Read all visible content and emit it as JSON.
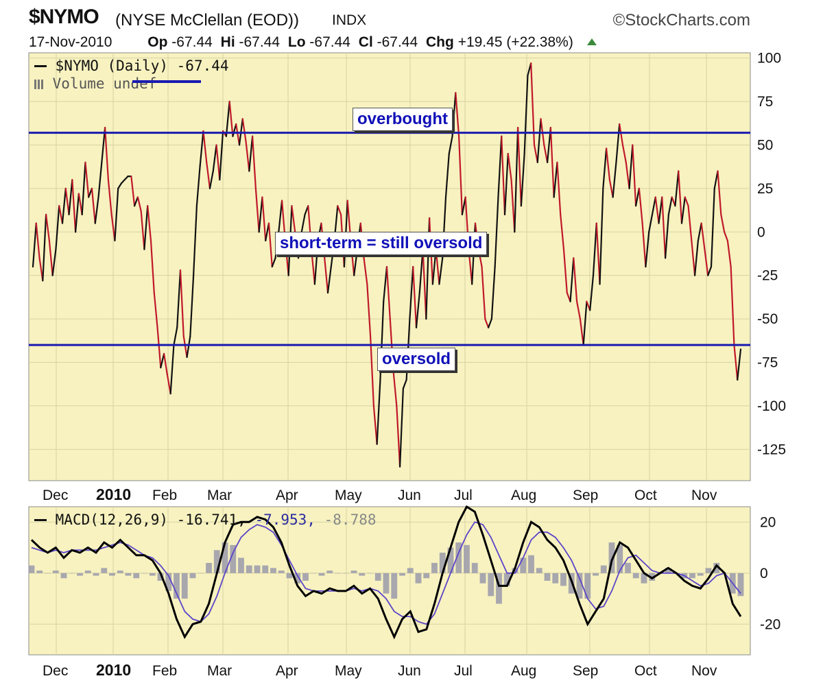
{
  "header": {
    "symbol": "$NYMO",
    "description": "(NYSE McClellan (EOD))",
    "exchange": "INDX",
    "brand": "©StockCharts.com",
    "date": "17-Nov-2010",
    "open_label": "Op",
    "open": "-67.44",
    "high_label": "Hi",
    "high": "-67.44",
    "low_label": "Lo",
    "low": "-67.44",
    "close_label": "Cl",
    "close": "-67.44",
    "change_label": "Chg",
    "change": "+19.45 (+22.38%)"
  },
  "legend": {
    "main": "$NYMO (Daily) -67.44",
    "volume": "Volume undef",
    "macd_prefix": "MACD(12,26,9) -16.741,",
    "macd_signal": "-7.953,",
    "macd_hist": "-8.788"
  },
  "annotations": {
    "overbought": "overbought",
    "middle": "short-term = still oversold",
    "oversold": "oversold"
  },
  "colors": {
    "panel_bg": "#f7f2c0",
    "grid": "#d8d3a4",
    "price_up": "#111111",
    "price_down": "#c0182a",
    "level_line": "#1a1ab0",
    "macd_line": "#000000",
    "signal_line": "#5c44c8",
    "histogram": "#9a9aaa"
  },
  "chart_data": [
    {
      "type": "line",
      "title": "$NYMO (Daily)",
      "x_axis_labels": [
        "Dec",
        "2010",
        "Feb",
        "Mar",
        "Apr",
        "May",
        "Jun",
        "Jul",
        "Aug",
        "Sep",
        "Oct",
        "Nov"
      ],
      "y_ticks": [
        100,
        75,
        50,
        25,
        0,
        -25,
        -50,
        -75,
        -100,
        -125
      ],
      "ylim": [
        -143,
        103
      ],
      "grid": true,
      "reference_lines": [
        {
          "value": 57,
          "label": "overbought"
        },
        {
          "value": -65,
          "label": "oversold"
        }
      ],
      "series": [
        {
          "name": "$NYMO",
          "values": [
            [
              -20,
              5,
              -15,
              -28,
              10,
              -5,
              -25,
              -10,
              15,
              5,
              25,
              10,
              30,
              0,
              22,
              10,
              40,
              20,
              25,
              5,
              20,
              40,
              60,
              30,
              10,
              -5,
              25,
              28,
              30,
              32,
              32,
              15,
              20,
              12,
              -10,
              15,
              -5,
              -35,
              -55,
              -78,
              -70,
              -82,
              -93,
              -65,
              -55,
              -22,
              -60,
              -72
            ],
            [
              -60,
              -25,
              15,
              38,
              58,
              40,
              25,
              35,
              50,
              30,
              58,
              55,
              75,
              55,
              62,
              50,
              65,
              52,
              35,
              55,
              25,
              0,
              20,
              -5,
              5,
              -20,
              -15,
              0,
              18,
              -5,
              -25,
              15,
              0,
              -15,
              0,
              10,
              15,
              -10,
              -30,
              -5,
              5,
              -15,
              -35,
              -20,
              -5,
              15,
              10,
              -20,
              18,
              -5,
              -25,
              -10,
              5,
              -15,
              -30
            ],
            [
              -60,
              -100,
              -122,
              -85,
              -40,
              -20,
              -50,
              -80,
              -100,
              -135,
              -90,
              -85,
              -50,
              -20,
              -55,
              -35,
              -10,
              -50,
              8,
              -30,
              -10,
              -30,
              -15,
              20,
              45,
              55,
              80,
              55,
              10,
              20,
              -10,
              -30,
              5,
              -10,
              -20,
              -50,
              -55,
              -50,
              -20,
              20,
              55,
              10,
              45,
              30,
              0,
              60,
              15,
              45,
              90,
              97,
              50,
              40,
              65,
              50,
              40,
              60,
              20,
              40,
              10
            ],
            [
              -10,
              -35,
              -40,
              -15,
              -40,
              -50,
              -65,
              -40,
              -45,
              -25,
              5,
              -30,
              25,
              48,
              30,
              20,
              40,
              62,
              50,
              40,
              25,
              50,
              15,
              25,
              5,
              -20,
              0,
              10,
              20,
              5,
              20,
              -15,
              10,
              20,
              15,
              35,
              5,
              20,
              15,
              -5,
              -25,
              -5,
              5,
              -10,
              -25,
              -20,
              25,
              35,
              10,
              0,
              -5,
              -20,
              -65,
              -85,
              -67.44
            ]
          ]
        }
      ]
    },
    {
      "type": "line",
      "title": "MACD(12,26,9)",
      "x_axis_labels": [
        "Dec",
        "2010",
        "Feb",
        "Mar",
        "Apr",
        "May",
        "Jun",
        "Jul",
        "Aug",
        "Sep",
        "Oct",
        "Nov"
      ],
      "y_ticks": [
        20,
        0,
        -20
      ],
      "ylim": [
        -32,
        26
      ],
      "grid": true,
      "last_values": {
        "macd": -16.741,
        "signal": -7.953,
        "histogram": -8.788
      },
      "series": [
        {
          "name": "MACD",
          "values": [
            13,
            10,
            8,
            10,
            6,
            9,
            8,
            10,
            8,
            12,
            10,
            13,
            10,
            7,
            7,
            5,
            0,
            -8,
            -18,
            -25,
            -20,
            -19,
            -12,
            0,
            12,
            19,
            20,
            20,
            22,
            21,
            18,
            12,
            3,
            -5,
            -9,
            -7,
            -8,
            -6,
            -7,
            -7,
            -5,
            -8,
            -6,
            -10,
            -18,
            -25,
            -18,
            -15,
            -23,
            -22,
            -12,
            0,
            10,
            20,
            26,
            24,
            15,
            5,
            -5,
            -5,
            2,
            12,
            20,
            18,
            13,
            10,
            5,
            -3,
            -12,
            -20,
            -15,
            -10,
            5,
            12,
            10,
            5,
            0,
            -2,
            0,
            2,
            0,
            -3,
            -5,
            -6,
            -2,
            3,
            0,
            -12,
            -17
          ]
        },
        {
          "name": "Signal",
          "values": [
            10,
            9,
            8,
            9,
            8,
            9,
            9,
            9,
            9,
            10,
            11,
            12,
            11,
            9,
            7,
            6,
            3,
            -1,
            -8,
            -15,
            -18,
            -19,
            -16,
            -9,
            0,
            8,
            14,
            17,
            19,
            18,
            16,
            11,
            5,
            -1,
            -6,
            -7,
            -7,
            -7,
            -7,
            -7,
            -6,
            -7,
            -6,
            -7,
            -10,
            -15,
            -17,
            -17,
            -19,
            -20,
            -16,
            -8,
            0,
            8,
            15,
            20,
            19,
            14,
            7,
            0,
            0,
            6,
            13,
            16,
            16,
            14,
            10,
            5,
            -2,
            -10,
            -14,
            -13,
            -7,
            1,
            6,
            7,
            4,
            1,
            0,
            0,
            0,
            -1,
            -3,
            -5,
            -4,
            -1,
            0,
            -4,
            -8
          ]
        }
      ]
    }
  ]
}
